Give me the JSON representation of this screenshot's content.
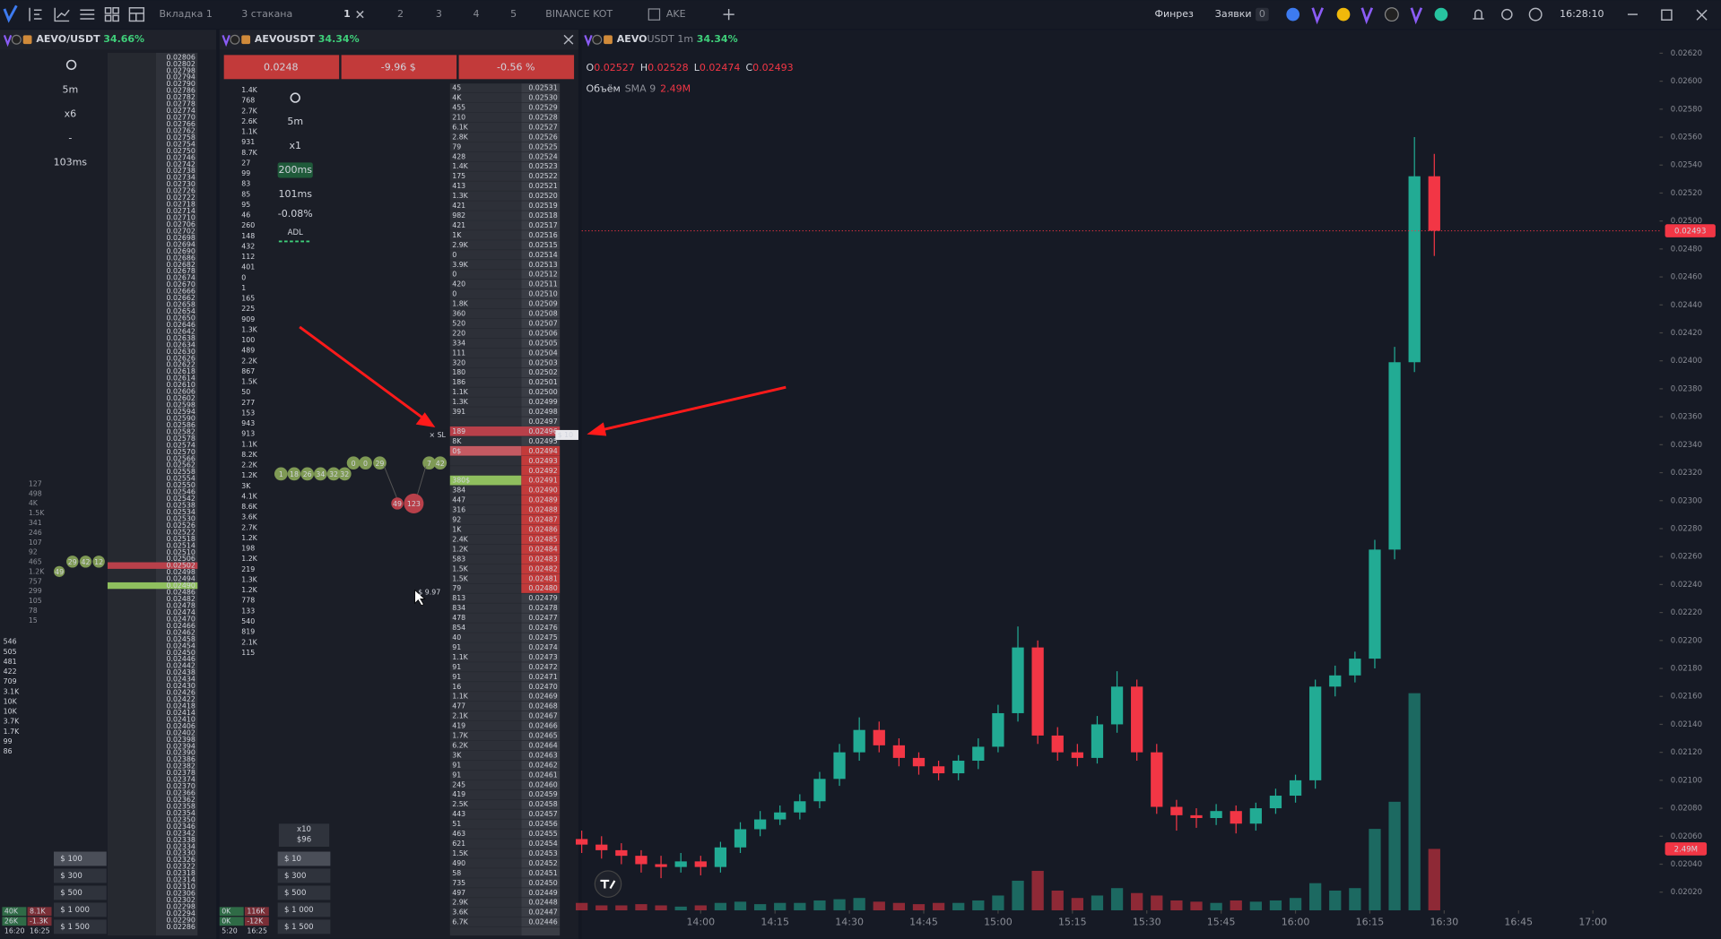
{
  "top_bar": {
    "tabs": [
      "Вкладка 1",
      "3 стакана",
      "1",
      "2",
      "3",
      "4",
      "5",
      "BINANCE KOT",
      "AKE"
    ],
    "finrez": "Финрез",
    "orders": "Заявки",
    "orders_count": "0",
    "clock": "16:28:10"
  },
  "left_panel": {
    "symbol": "AEVO/USDT",
    "change": "34.66%",
    "settings": [
      "5m",
      "x6",
      "-",
      "103ms"
    ],
    "trade_volumes": [
      "127",
      "498",
      "4K",
      "1.5K",
      "341",
      "246",
      "107",
      "92",
      "465",
      "1.2K",
      "757",
      "299",
      "105",
      "78",
      "15"
    ],
    "cluster_volumes": [
      "546",
      "505",
      "481",
      "422",
      "709",
      "3.1K",
      "10K",
      "10K",
      "3.7K",
      "1.7K",
      "99",
      "86"
    ],
    "bubbles_buy": [
      "29",
      "42",
      "12"
    ],
    "bubble_sell": "49",
    "book_prices": [
      "0.02806",
      "0.02802",
      "0.02798",
      "0.02794",
      "0.02790",
      "0.02786",
      "0.02782",
      "0.02778",
      "0.02774",
      "0.02770",
      "0.02766",
      "0.02762",
      "0.02758",
      "0.02754",
      "0.02750",
      "0.02746",
      "0.02742",
      "0.02738",
      "0.02734",
      "0.02730",
      "0.02726",
      "0.02722",
      "0.02718",
      "0.02714",
      "0.02710",
      "0.02706",
      "0.02702",
      "0.02698",
      "0.02694",
      "0.02690",
      "0.02686",
      "0.02682",
      "0.02678",
      "0.02674",
      "0.02670",
      "0.02666",
      "0.02662",
      "0.02658",
      "0.02654",
      "0.02650",
      "0.02646",
      "0.02642",
      "0.02638",
      "0.02634",
      "0.02630",
      "0.02626",
      "0.02622",
      "0.02618",
      "0.02614",
      "0.02610",
      "0.02606",
      "0.02602",
      "0.02598",
      "0.02594",
      "0.02590",
      "0.02586",
      "0.02582",
      "0.02578",
      "0.02574",
      "0.02570",
      "0.02566",
      "0.02562",
      "0.02558",
      "0.02554",
      "0.02550",
      "0.02546",
      "0.02542",
      "0.02538",
      "0.02534",
      "0.02530",
      "0.02526",
      "0.02522",
      "0.02518",
      "0.02514",
      "0.02510",
      "0.02506",
      "0.02502",
      "0.02498",
      "0.02494",
      "0.02490",
      "0.02486",
      "0.02482",
      "0.02478",
      "0.02474",
      "0.02470",
      "0.02466",
      "0.02462",
      "0.02458",
      "0.02454",
      "0.02450",
      "0.02446",
      "0.02442",
      "0.02438",
      "0.02434",
      "0.02430",
      "0.02426",
      "0.02422",
      "0.02418",
      "0.02414",
      "0.02410",
      "0.02406",
      "0.02402",
      "0.02398",
      "0.02394",
      "0.02390",
      "0.02386",
      "0.02382",
      "0.02378",
      "0.02374",
      "0.02370",
      "0.02366",
      "0.02362",
      "0.02358",
      "0.02354",
      "0.02350",
      "0.02346",
      "0.02342",
      "0.02338",
      "0.02334",
      "0.02330",
      "0.02326",
      "0.02322",
      "0.02318",
      "0.02314",
      "0.02310",
      "0.02306",
      "0.02302",
      "0.02298",
      "0.02294",
      "0.02290",
      "0.02286"
    ],
    "amounts": [
      "$ 100",
      "$ 300",
      "$ 500",
      "$ 1 000",
      "$ 1 500"
    ],
    "footer": [
      [
        "40K",
        "8.1K"
      ],
      [
        "26K",
        "-1.3K"
      ],
      [
        "16:20",
        "16:25"
      ]
    ]
  },
  "middle_panel": {
    "symbol": "AEVOUSDT",
    "change": "34.34%",
    "stats": [
      "0.0248",
      "-9.96 $",
      "-0.56 %"
    ],
    "settings": [
      "5m",
      "x1",
      "200ms",
      "101ms",
      "-0.08%",
      "ADL"
    ],
    "trade_volumes": [
      "1.4K",
      "768",
      "2.7K",
      "2.6K",
      "1.1K",
      "931",
      "8.7K",
      "27",
      "99",
      "83",
      "85",
      "95",
      "46",
      "260",
      "148",
      "432",
      "112",
      "401",
      "0",
      "1",
      "165",
      "225",
      "909",
      "1.3K",
      "100",
      "489",
      "2.2K",
      "867",
      "1.5K",
      "50",
      "277",
      "153",
      "943",
      "913",
      "1.1K",
      "8.2K",
      "2.2K",
      "1.2K",
      "3K",
      "4.1K",
      "8.6K",
      "3.6K",
      "2.7K",
      "1.2K",
      "198",
      "1.2K",
      "219",
      "1.3K",
      "1.2K",
      "778",
      "133",
      "540",
      "819",
      "2.1K",
      "115"
    ],
    "book": {
      "prices": [
        "0.02531",
        "0.02530",
        "0.02529",
        "0.02528",
        "0.02527",
        "0.02526",
        "0.02525",
        "0.02524",
        "0.02523",
        "0.02522",
        "0.02521",
        "0.02520",
        "0.02519",
        "0.02518",
        "0.02517",
        "0.02516",
        "0.02515",
        "0.02514",
        "0.02513",
        "0.02512",
        "0.02511",
        "0.02510",
        "0.02509",
        "0.02508",
        "0.02507",
        "0.02506",
        "0.02505",
        "0.02504",
        "0.02503",
        "0.02502",
        "0.02501",
        "0.02500",
        "0.02499",
        "0.02498",
        "0.02497",
        "0.02496",
        "0.02495",
        "0.02494",
        "0.02493",
        "0.02492",
        "0.02491",
        "0.02490",
        "0.02489",
        "0.02488",
        "0.02487",
        "0.02486",
        "0.02485",
        "0.02484",
        "0.02483",
        "0.02482",
        "0.02481",
        "0.02480",
        "0.02479",
        "0.02478",
        "0.02477",
        "0.02476",
        "0.02475",
        "0.02474",
        "0.02473",
        "0.02472",
        "0.02471",
        "0.02470",
        "0.02469",
        "0.02468",
        "0.02467",
        "0.02466",
        "0.02465",
        "0.02464",
        "0.02463",
        "0.02462",
        "0.02461",
        "0.02460",
        "0.02459",
        "0.02458",
        "0.02457",
        "0.02456",
        "0.02455",
        "0.02454",
        "0.02453",
        "0.02452",
        "0.02451",
        "0.02450",
        "0.02449",
        "0.02448",
        "0.02447",
        "0.02446"
      ],
      "sizes": [
        "45",
        "4K",
        "455",
        "210",
        "6.1K",
        "2.8K",
        "79",
        "428",
        "1.4K",
        "175",
        "413",
        "1.3K",
        "421",
        "982",
        "421",
        "1K",
        "2.9K",
        "0",
        "3.9K",
        "0",
        "420",
        "0",
        "1.8K",
        "360",
        "520",
        "220",
        "334",
        "111",
        "320",
        "180",
        "186",
        "1.1K",
        "1.3K",
        "391",
        null,
        "189",
        "8K",
        "0$",
        null,
        null,
        "380$",
        "384",
        "447",
        "316",
        "92",
        "1K",
        "2.4K",
        "1.2K",
        "583",
        "1.5K",
        "1.5K",
        "79",
        "813",
        "834",
        "478",
        "854",
        "40",
        "91",
        "1.1K",
        "91",
        "91",
        "16",
        "1.1K",
        "477",
        "2.1K",
        "419",
        "1.7K",
        "6.2K",
        "3K",
        "91",
        "91",
        "245",
        "419",
        "2.5K",
        "443",
        "51",
        "463",
        "621",
        "1.5K",
        "490",
        "58",
        "735",
        "497",
        "2.9K",
        "3.6K",
        "6.7K"
      ]
    },
    "bubbles_buy": [
      "1",
      "18",
      "26",
      "34",
      "32",
      "32",
      "0",
      "0",
      "29",
      "7",
      "42"
    ],
    "bubbles_sell": [
      "49",
      "123"
    ],
    "order_labels": {
      "sl": "× SL",
      "order": "$ 10",
      "cursor": "$ 9.97"
    },
    "leverage": [
      "x10",
      "$96"
    ],
    "amounts": [
      "$ 10",
      "$ 300",
      "$ 500",
      "$ 1 000",
      "$ 1 500"
    ],
    "footer": [
      [
        "0K",
        "116K"
      ],
      [
        "0K",
        "-12K"
      ],
      [
        "5:20",
        "16:25"
      ]
    ]
  },
  "chart_data": {
    "type": "candlestick",
    "symbol": "AEVO",
    "quote": "USDT",
    "interval": "1m",
    "change": "34.34%",
    "ohlc_legend": [
      {
        "label": "O",
        "value": "0.02527"
      },
      {
        "label": "H",
        "value": "0.02528"
      },
      {
        "label": "L",
        "value": "0.02474"
      },
      {
        "label": "C",
        "value": "0.02493"
      }
    ],
    "volume_legend": {
      "name": "Объём",
      "indicator": "SMA 9",
      "value": "2.49M"
    },
    "x": [
      "13:36",
      "13:40",
      "13:44",
      "13:48",
      "13:52",
      "13:56",
      "14:00",
      "14:04",
      "14:08",
      "14:12",
      "14:16",
      "14:20",
      "14:24",
      "14:28",
      "14:32",
      "14:36",
      "14:40",
      "14:44",
      "14:48",
      "14:52",
      "14:56",
      "15:00",
      "15:04",
      "15:08",
      "15:12",
      "15:16",
      "15:20",
      "15:24",
      "15:28",
      "15:32",
      "15:36",
      "15:40",
      "15:44",
      "15:48",
      "15:52",
      "15:56",
      "16:00",
      "16:04",
      "16:08",
      "16:12",
      "16:16",
      "16:20",
      "16:24",
      "16:28"
    ],
    "open": [
      0.02058,
      0.02054,
      0.0205,
      0.02046,
      0.0204,
      0.02038,
      0.02042,
      0.02038,
      0.02052,
      0.02065,
      0.02072,
      0.02077,
      0.02085,
      0.02101,
      0.0212,
      0.02136,
      0.02125,
      0.02116,
      0.0211,
      0.02105,
      0.02114,
      0.02124,
      0.02148,
      0.02195,
      0.02132,
      0.0212,
      0.02116,
      0.0214,
      0.02167,
      0.0212,
      0.02081,
      0.02075,
      0.02073,
      0.02078,
      0.02069,
      0.0208,
      0.02089,
      0.021,
      0.02167,
      0.02175,
      0.02187,
      0.02265,
      0.02399,
      0.02532
    ],
    "high": [
      0.02064,
      0.0206,
      0.02055,
      0.0205,
      0.02046,
      0.02048,
      0.02046,
      0.02056,
      0.0207,
      0.02078,
      0.02082,
      0.0209,
      0.02106,
      0.02126,
      0.02145,
      0.02142,
      0.0213,
      0.0212,
      0.02114,
      0.02118,
      0.0213,
      0.02154,
      0.0221,
      0.022,
      0.02138,
      0.02126,
      0.02146,
      0.02178,
      0.02172,
      0.02126,
      0.02086,
      0.0208,
      0.02083,
      0.02082,
      0.02084,
      0.02094,
      0.02104,
      0.02172,
      0.02182,
      0.02192,
      0.02272,
      0.0241,
      0.0256,
      0.02548
    ],
    "low": [
      0.02048,
      0.02044,
      0.0204,
      0.02034,
      0.0203,
      0.02034,
      0.02032,
      0.02034,
      0.02048,
      0.0206,
      0.02068,
      0.02072,
      0.0208,
      0.02096,
      0.02114,
      0.0212,
      0.0211,
      0.02104,
      0.021,
      0.021,
      0.02108,
      0.0212,
      0.02142,
      0.02126,
      0.02114,
      0.0211,
      0.02112,
      0.02134,
      0.02114,
      0.02076,
      0.02064,
      0.02066,
      0.02068,
      0.02062,
      0.02064,
      0.02076,
      0.02084,
      0.02094,
      0.0216,
      0.0217,
      0.0218,
      0.02258,
      0.02392,
      0.02475
    ],
    "close": [
      0.02054,
      0.0205,
      0.02046,
      0.0204,
      0.02038,
      0.02042,
      0.02038,
      0.02052,
      0.02065,
      0.02072,
      0.02077,
      0.02085,
      0.02101,
      0.0212,
      0.02136,
      0.02125,
      0.02116,
      0.0211,
      0.02105,
      0.02114,
      0.02124,
      0.02148,
      0.02195,
      0.02132,
      0.0212,
      0.02116,
      0.0214,
      0.02167,
      0.0212,
      0.02081,
      0.02075,
      0.02073,
      0.02078,
      0.02069,
      0.0208,
      0.02089,
      0.021,
      0.02167,
      0.02175,
      0.02187,
      0.02265,
      0.02399,
      0.02532,
      0.02493
    ],
    "volume": [
      0.3,
      0.2,
      0.2,
      0.25,
      0.2,
      0.15,
      0.2,
      0.3,
      0.35,
      0.25,
      0.3,
      0.3,
      0.4,
      0.45,
      0.5,
      0.35,
      0.3,
      0.25,
      0.3,
      0.3,
      0.4,
      0.6,
      1.2,
      1.6,
      0.8,
      0.5,
      0.6,
      0.9,
      0.7,
      0.6,
      0.4,
      0.35,
      0.3,
      0.4,
      0.35,
      0.4,
      0.5,
      1.1,
      0.8,
      0.9,
      3.3,
      4.4,
      8.8,
      2.49
    ],
    "up_color": "#22ab94",
    "down_color": "#f23645",
    "last_price": 0.02493,
    "xlim": [
      "13:36",
      "17:13"
    ],
    "xticks": [
      "14:00",
      "14:15",
      "14:30",
      "14:45",
      "15:00",
      "15:15",
      "15:30",
      "15:45",
      "16:00",
      "16:15",
      "16:30",
      "16:45",
      "17:00"
    ],
    "ylim": [
      0.02007,
      0.02625
    ],
    "yticks": [
      {
        "value": 0.0262,
        "label": "0.02620"
      },
      {
        "value": 0.026,
        "label": "0.02600"
      },
      {
        "value": 0.0258,
        "label": "0.02580"
      },
      {
        "value": 0.0256,
        "label": "0.02560"
      },
      {
        "value": 0.0254,
        "label": "0.02540"
      },
      {
        "value": 0.0252,
        "label": "0.02520"
      },
      {
        "value": 0.025,
        "label": "0.02500"
      },
      {
        "value": 0.0248,
        "label": "0.02480"
      },
      {
        "value": 0.0246,
        "label": "0.02460"
      },
      {
        "value": 0.0244,
        "label": "0.02440"
      },
      {
        "value": 0.0242,
        "label": "0.02420"
      },
      {
        "value": 0.024,
        "label": "0.02400"
      },
      {
        "value": 0.0238,
        "label": "0.02380"
      },
      {
        "value": 0.0236,
        "label": "0.02360"
      },
      {
        "value": 0.0234,
        "label": "0.02340"
      },
      {
        "value": 0.0232,
        "label": "0.02320"
      },
      {
        "value": 0.023,
        "label": "0.02300"
      },
      {
        "value": 0.0228,
        "label": "0.02280"
      },
      {
        "value": 0.0226,
        "label": "0.02260"
      },
      {
        "value": 0.0224,
        "label": "0.02240"
      },
      {
        "value": 0.0222,
        "label": "0.02220"
      },
      {
        "value": 0.022,
        "label": "0.02200"
      },
      {
        "value": 0.0218,
        "label": "0.02180"
      },
      {
        "value": 0.0216,
        "label": "0.02160"
      },
      {
        "value": 0.0214,
        "label": "0.02140"
      },
      {
        "value": 0.0212,
        "label": "0.02120"
      },
      {
        "value": 0.021,
        "label": "0.02100"
      },
      {
        "value": 0.0208,
        "label": "0.02080"
      },
      {
        "value": 0.0206,
        "label": "0.02060"
      },
      {
        "value": 0.0204,
        "label": "0.02040"
      },
      {
        "value": 0.0202,
        "label": "0.02020"
      }
    ]
  }
}
